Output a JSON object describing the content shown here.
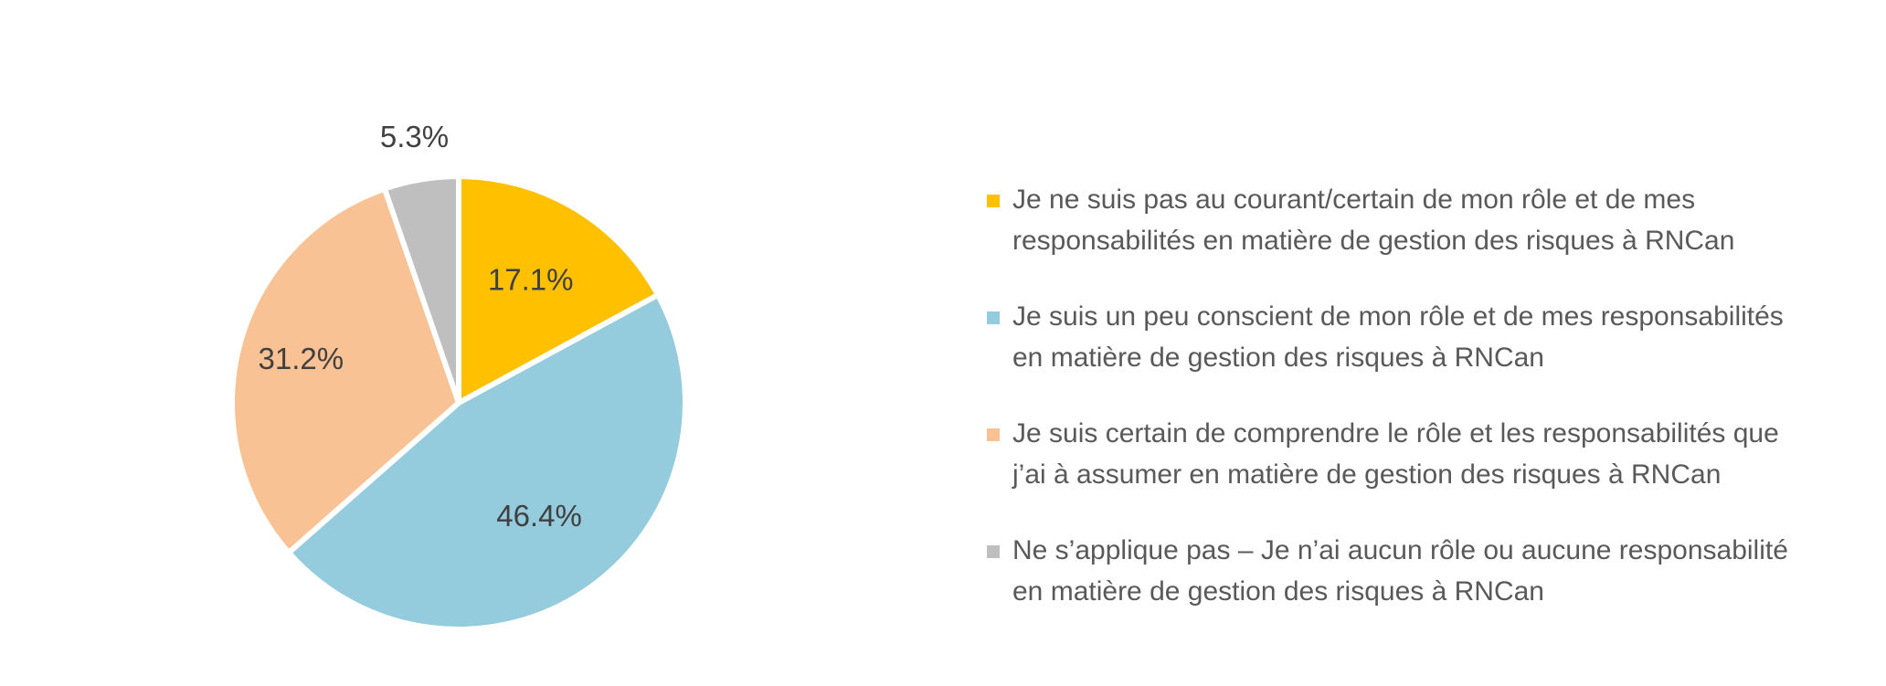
{
  "chart_data": {
    "type": "pie",
    "title": "",
    "start_angle_deg": 0,
    "direction": "clockwise",
    "legend_position": "right",
    "categories": [
      "Je ne suis pas au courant/certain de mon rôle et de mes responsabilités en matière de gestion des risques à RNCan",
      "Je suis un peu conscient de mon rôle et de mes responsabilités en matière de gestion des risques à RNCan",
      "Je suis certain de comprendre le rôle et les responsabilités que j’ai à assumer en matière de gestion des risques à RNCan",
      "Ne s’applique pas – Je n’ai aucun rôle ou aucune responsabilité en matière de gestion des risques à RNCan"
    ],
    "values": [
      17.1,
      46.4,
      31.2,
      5.3
    ],
    "data_labels": [
      "17.1%",
      "46.4%",
      "31.2%",
      "5.3%"
    ],
    "colors": [
      "#FFC000",
      "#95CCDD",
      "#F8C294",
      "#BFBFBF"
    ]
  },
  "legend": {
    "items": [
      {
        "line1": "Je ne suis pas au courant/certain de mon rôle et de mes",
        "line2": "responsabilités en matière de gestion des risques à RNCan",
        "color": "#FFC000"
      },
      {
        "line1": "Je suis un peu conscient de mon rôle et de mes responsabilités",
        "line2": "en matière de gestion des risques à RNCan",
        "color": "#95CCDD"
      },
      {
        "line1": "Je suis certain de comprendre le rôle et les responsabilités que",
        "line2": "j’ai à assumer en matière de gestion des risques à RNCan",
        "color": "#F8C294"
      },
      {
        "line1": "Ne s’applique pas – Je n’ai aucun rôle ou aucune responsabilité",
        "line2": "en matière de gestion des risques à RNCan",
        "color": "#BFBFBF"
      }
    ]
  }
}
